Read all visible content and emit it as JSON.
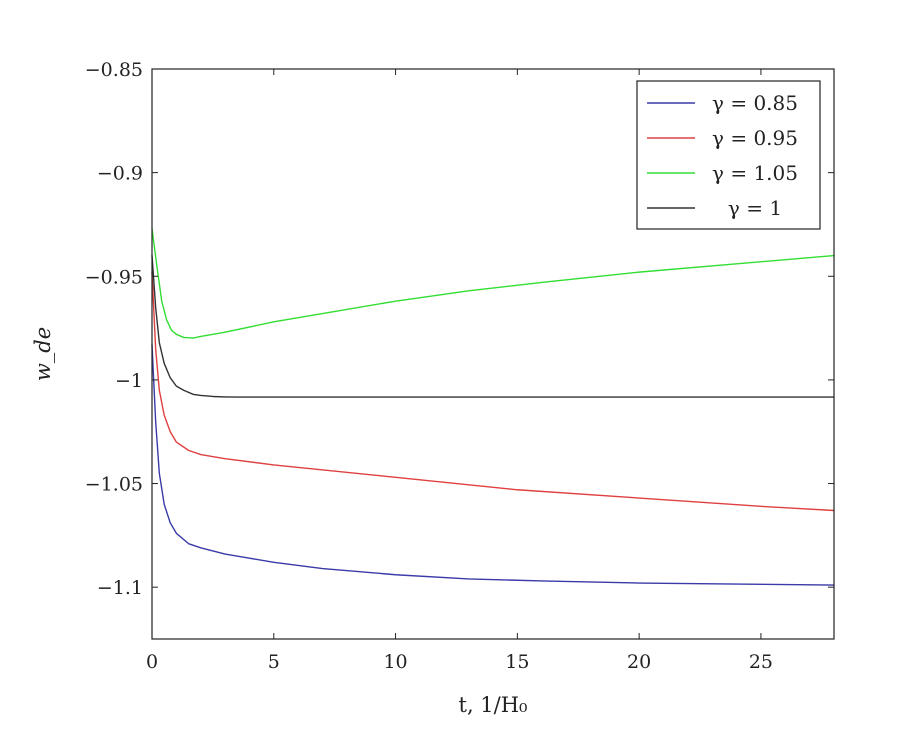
{
  "chart_data": {
    "type": "line",
    "xlabel": "t, 1/H₀",
    "ylabel": "w_de",
    "xlim": [
      0,
      28
    ],
    "ylim": [
      -1.125,
      -0.85
    ],
    "xticks": [
      0,
      5,
      10,
      15,
      20,
      25
    ],
    "yticks": [
      -0.85,
      -0.9,
      -0.95,
      -1,
      -1.05,
      -1.1
    ],
    "xtick_labels": [
      "0",
      "5",
      "10",
      "15",
      "20",
      "25"
    ],
    "ytick_labels": [
      "−0.85",
      "−0.9",
      "−0.95",
      "−1",
      "−1.05",
      "−1.1"
    ],
    "grid": false,
    "legend_position": "top-right",
    "series": [
      {
        "name": "γ = 0.85",
        "color": "#3a3aa8",
        "x": [
          0,
          0.15,
          0.3,
          0.5,
          0.75,
          1.0,
          1.5,
          2,
          3,
          4,
          5,
          7,
          10,
          13,
          16,
          20,
          24,
          28
        ],
        "y": [
          -0.983,
          -1.02,
          -1.045,
          -1.06,
          -1.069,
          -1.074,
          -1.079,
          -1.081,
          -1.084,
          -1.086,
          -1.088,
          -1.091,
          -1.094,
          -1.096,
          -1.097,
          -1.098,
          -1.0985,
          -1.099
        ]
      },
      {
        "name": "γ = 0.95",
        "color": "#e04040",
        "x": [
          0,
          0.15,
          0.3,
          0.5,
          0.75,
          1.0,
          1.5,
          2,
          3,
          5,
          10,
          15,
          20,
          25,
          28
        ],
        "y": [
          -0.948,
          -0.985,
          -1.005,
          -1.017,
          -1.025,
          -1.03,
          -1.034,
          -1.036,
          -1.038,
          -1.041,
          -1.047,
          -1.053,
          -1.057,
          -1.061,
          -1.063
        ]
      },
      {
        "name": "γ = 1.05",
        "color": "#33dd33",
        "x": [
          0,
          0.2,
          0.4,
          0.6,
          0.8,
          1.0,
          1.3,
          1.7,
          2.0,
          3,
          5,
          7,
          10,
          13,
          16,
          20,
          24,
          28
        ],
        "y": [
          -0.927,
          -0.945,
          -0.962,
          -0.971,
          -0.976,
          -0.978,
          -0.9795,
          -0.9798,
          -0.979,
          -0.977,
          -0.972,
          -0.968,
          -0.962,
          -0.957,
          -0.953,
          -0.948,
          -0.944,
          -0.94
        ]
      },
      {
        "name": "γ = 1",
        "color": "#333333",
        "x": [
          0,
          0.15,
          0.3,
          0.5,
          0.75,
          1.0,
          1.3,
          1.7,
          2.0,
          2.5,
          3,
          3.5,
          4,
          6,
          10,
          15,
          20,
          25,
          28
        ],
        "y": [
          -0.94,
          -0.965,
          -0.982,
          -0.992,
          -0.999,
          -1.003,
          -1.005,
          -1.007,
          -1.0075,
          -1.008,
          -1.0082,
          -1.0083,
          -1.0083,
          -1.0083,
          -1.0083,
          -1.0083,
          -1.0083,
          -1.0083,
          -1.0083
        ]
      }
    ]
  }
}
